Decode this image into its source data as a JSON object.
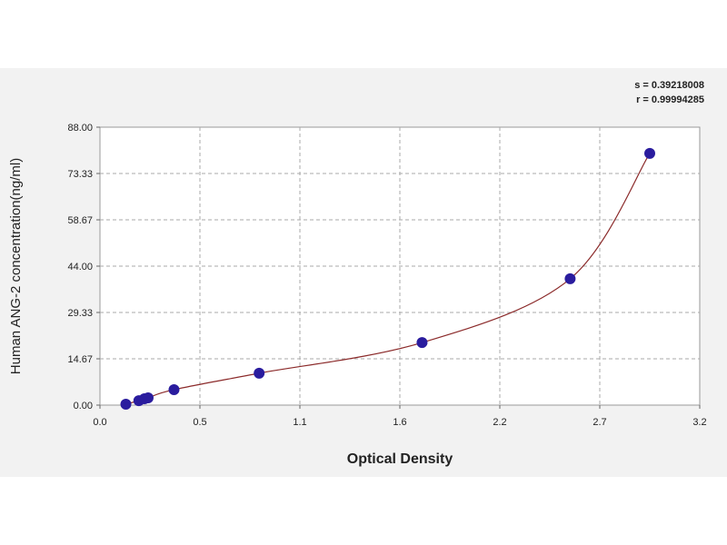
{
  "chart_data": {
    "type": "scatter",
    "annotations": [
      "s = 0.39218008",
      "r = 0.99994285"
    ],
    "x_label": "Optical Density",
    "y_label": "Human ANG-2 concentration(ng/ml)",
    "x": [
      0.14,
      0.21,
      0.24,
      0.26,
      0.4,
      0.86,
      1.74,
      2.54,
      2.97
    ],
    "series": [
      {
        "color": "#2a1c9e",
        "values": [
          0.3,
          1.4,
          2.0,
          2.3,
          4.9,
          10.1,
          19.8,
          40.0,
          79.7
        ]
      }
    ],
    "curve_color": "#8b2a2a",
    "xlim": [
      0,
      3.24
    ],
    "xticks": [
      {
        "value": 0,
        "label": "0.0"
      },
      {
        "value": 0.54,
        "label": "0.5"
      },
      {
        "value": 1.08,
        "label": "1.1"
      },
      {
        "value": 1.62,
        "label": "1.6"
      },
      {
        "value": 2.16,
        "label": "2.2"
      },
      {
        "value": 2.7,
        "label": "2.7"
      },
      {
        "value": 3.24,
        "label": "3.2"
      }
    ],
    "ylim": [
      0,
      88
    ],
    "yticks": [
      {
        "value": 0,
        "label": "0.00"
      },
      14.67,
      29.33,
      {
        "value": 44,
        "label": "44.00"
      },
      58.67,
      73.33,
      {
        "value": 88,
        "label": "88.00"
      }
    ],
    "grid": true
  }
}
